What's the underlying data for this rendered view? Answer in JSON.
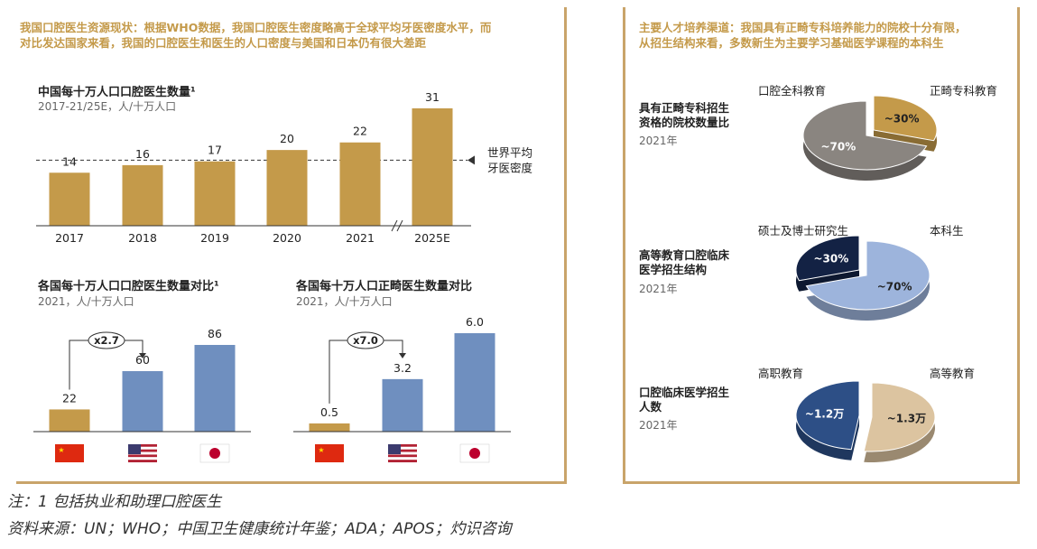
{
  "left": {
    "headline": [
      "我国口腔医生资源现状：根据WHO数据，我国口腔医生密度略高于全球平均牙医密度水平，而",
      "对比发达国家来看，我国的口腔医生和医生的人口密度与美国和日本仍有很大差距"
    ],
    "chart1_title": "中国每十万人口口腔医生数量¹",
    "chart1_sub": "2017-21/25E，人/十万人口",
    "chart2_title": "各国每十万人口口腔医生数量对比¹",
    "chart2_sub": "2021，人/十万人口",
    "chart3_title": "各国每十万人口正畸医生数量对比",
    "chart3_sub": "2021，人/十万人口"
  },
  "right": {
    "headline": [
      "主要人才培养渠道：我国具有正畸专科培养能力的院校十分有限，",
      "从招生结构来看，多数新生为主要学习基础医学课程的本科生"
    ],
    "rows": [
      {
        "title": [
          "具有正畸专科招生",
          "资格的院校数量比"
        ],
        "year": "2021年",
        "left_label": "口腔全科教育",
        "right_label": "正畸专科教育"
      },
      {
        "title": [
          "高等教育口腔临床",
          "医学招生结构"
        ],
        "year": "2021年",
        "left_label": "硕士及博士研究生",
        "right_label": "本科生"
      },
      {
        "title": [
          "口腔临床医学招生",
          "人数"
        ],
        "year": "2021年",
        "left_label": "高职教育",
        "right_label": "高等教育"
      }
    ]
  },
  "notes": [
    "注：1  包括执业和助理口腔医生",
    "资料来源：UN；WHO；中国卫生健康统计年鉴；ADA；APOS；灼识咨询"
  ],
  "colors": {
    "gold": "#c49a4a",
    "blue": "#6f8fbf",
    "grey": "#8a8580",
    "navy": "#132244",
    "lightblue": "#9db4dc",
    "darkblue": "#2d4f86",
    "tan": "#dcc4a0"
  },
  "chart_data": [
    {
      "type": "bar",
      "title": "中国每十万人口口腔医生数量¹",
      "subtitle": "2017-21/25E，人/十万人口",
      "categories": [
        "2017",
        "2018",
        "2019",
        "2020",
        "2021",
        "2025E"
      ],
      "values": [
        14,
        16,
        17,
        20,
        22,
        31
      ],
      "reference_line": {
        "value": 19,
        "label": [
          "世界平均",
          "牙医密度"
        ]
      },
      "axis_break": "between 2021 and 2025E"
    },
    {
      "type": "bar",
      "title": "各国每十万人口口腔医生数量对比¹",
      "subtitle": "2021，人/十万人口",
      "categories": [
        "中国",
        "美国",
        "日本"
      ],
      "values": [
        22,
        60,
        86
      ],
      "annotation": "x2.7"
    },
    {
      "type": "bar",
      "title": "各国每十万人口正畸医生数量对比",
      "subtitle": "2021，人/十万人口",
      "categories": [
        "中国",
        "美国",
        "日本"
      ],
      "values": [
        0.5,
        3.2,
        6.0
      ],
      "value_labels": [
        "0.5",
        "3.2",
        "6.0"
      ],
      "annotation": "x7.0"
    },
    {
      "type": "pie",
      "title": "具有正畸专科招生资格的院校数量比",
      "slices": [
        {
          "label": "口腔全科教育",
          "value": 70,
          "text": "~70%"
        },
        {
          "label": "正畸专科教育",
          "value": 30,
          "text": "~30%"
        }
      ]
    },
    {
      "type": "pie",
      "title": "高等教育口腔临床医学招生结构",
      "slices": [
        {
          "label": "硕士及博士研究生",
          "value": 30,
          "text": "~30%"
        },
        {
          "label": "本科生",
          "value": 70,
          "text": "~70%"
        }
      ]
    },
    {
      "type": "pie",
      "title": "口腔临床医学招生人数",
      "slices": [
        {
          "label": "高职教育",
          "value": 48,
          "text": "~1.2万"
        },
        {
          "label": "高等教育",
          "value": 52,
          "text": "~1.3万"
        }
      ]
    }
  ]
}
